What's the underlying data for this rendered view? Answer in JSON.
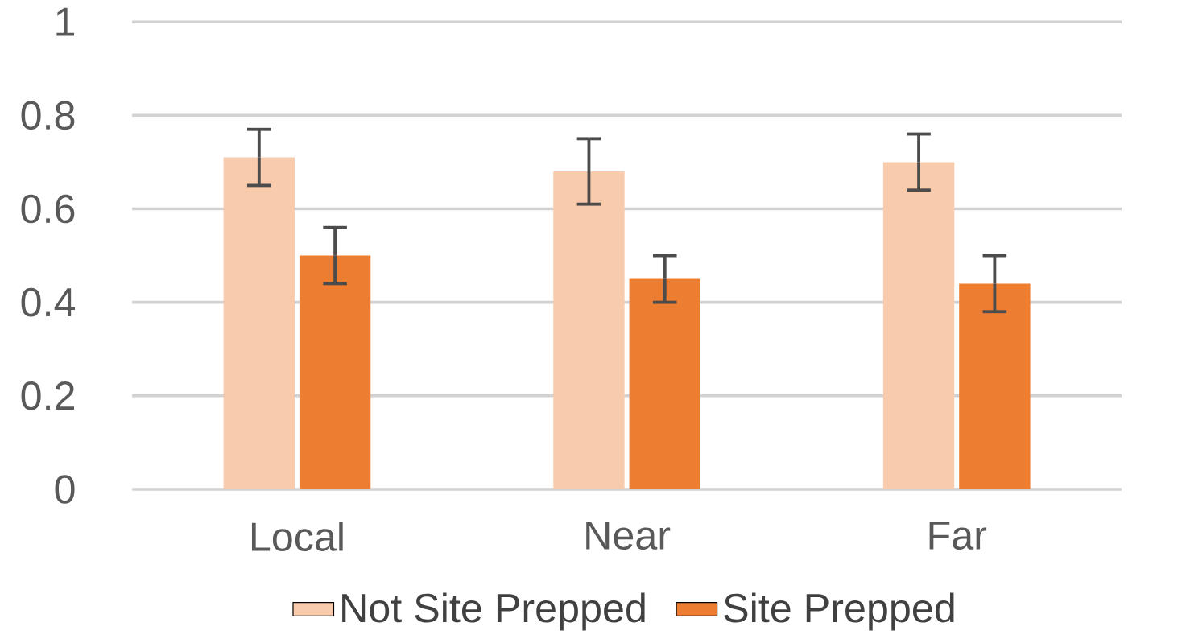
{
  "chart_data": {
    "type": "bar",
    "categories": [
      "Local",
      "Near",
      "Far"
    ],
    "series": [
      {
        "name": "Not Site Prepped",
        "color": "#f8cbad",
        "values": [
          0.71,
          0.68,
          0.7
        ],
        "errors": [
          0.06,
          0.07,
          0.06
        ]
      },
      {
        "name": "Site Prepped",
        "color": "#ed7d31",
        "values": [
          0.5,
          0.45,
          0.44
        ],
        "errors": [
          0.06,
          0.05,
          0.06
        ]
      }
    ],
    "ylim": [
      0,
      1
    ],
    "yticks": [
      0,
      0.2,
      0.4,
      0.6,
      0.8,
      1
    ],
    "grid": "y",
    "legend": "bottom"
  }
}
